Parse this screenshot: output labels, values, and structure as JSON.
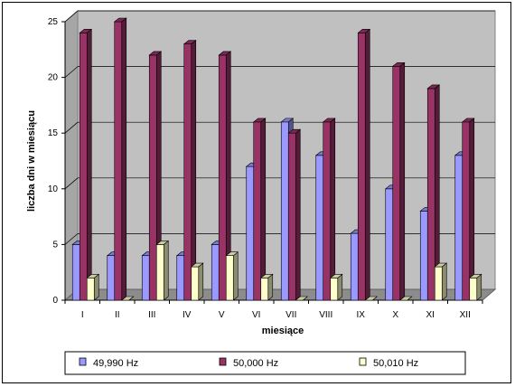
{
  "chart_data": {
    "type": "bar",
    "xlabel": "miesiące",
    "ylabel": "liczba dni w miesiącu",
    "ylim": [
      0,
      25
    ],
    "yticks": [
      0,
      5,
      10,
      15,
      20,
      25
    ],
    "grid": true,
    "legend_position": "bottom",
    "categories": [
      "I",
      "II",
      "III",
      "IV",
      "V",
      "VI",
      "VII",
      "VIII",
      "IX",
      "X",
      "XI",
      "XII"
    ],
    "series": [
      {
        "name": "49,990 Hz",
        "color": "#9999ff",
        "values": [
          5,
          4,
          4,
          4,
          5,
          12,
          16,
          13,
          6,
          10,
          8,
          13
        ]
      },
      {
        "name": "50,000 Hz",
        "color": "#993366",
        "values": [
          24,
          25,
          22,
          23,
          22,
          16,
          15,
          16,
          24,
          21,
          19,
          16
        ]
      },
      {
        "name": "50,010 Hz",
        "color": "#ffffcc",
        "values": [
          2,
          0,
          5,
          3,
          4,
          2,
          0,
          2,
          0,
          0,
          3,
          2
        ]
      }
    ]
  }
}
